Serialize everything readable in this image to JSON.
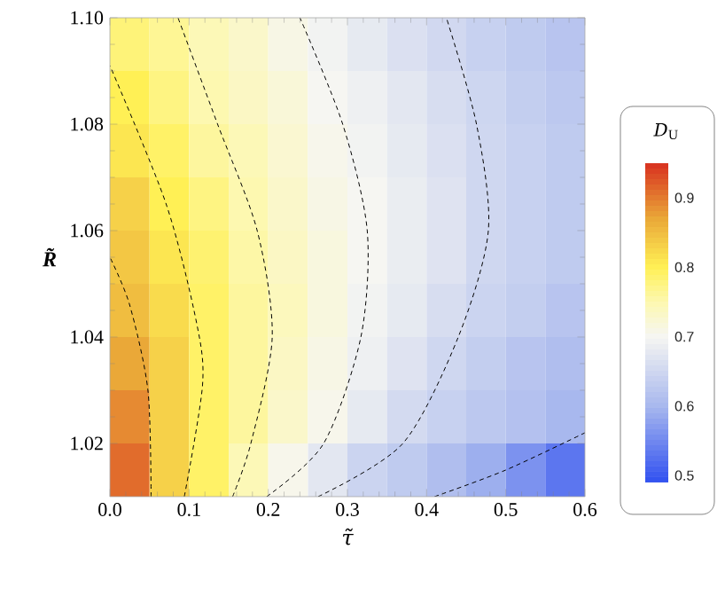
{
  "chart_data": {
    "type": "heatmap",
    "xlabel": "τ̃",
    "ylabel": "R̃",
    "clabel": "*D*$_{U}$",
    "x": [
      0.025,
      0.075,
      0.125,
      0.175,
      0.225,
      0.275,
      0.325,
      0.375,
      0.425,
      0.475,
      0.525,
      0.575
    ],
    "y": [
      1.095,
      1.085,
      1.075,
      1.065,
      1.055,
      1.045,
      1.035,
      1.025,
      1.015
    ],
    "cells": [
      [
        0.78,
        0.765,
        0.745,
        0.73,
        0.71,
        0.695,
        0.68,
        0.665,
        0.652,
        0.64,
        0.63,
        0.62
      ],
      [
        0.8,
        0.775,
        0.75,
        0.735,
        0.72,
        0.7,
        0.69,
        0.675,
        0.66,
        0.648,
        0.635,
        0.625
      ],
      [
        0.81,
        0.79,
        0.76,
        0.745,
        0.725,
        0.705,
        0.695,
        0.68,
        0.665,
        0.65,
        0.64,
        0.63
      ],
      [
        0.83,
        0.8,
        0.775,
        0.75,
        0.73,
        0.71,
        0.7,
        0.685,
        0.67,
        0.65,
        0.64,
        0.63
      ],
      [
        0.84,
        0.81,
        0.785,
        0.755,
        0.735,
        0.715,
        0.7,
        0.685,
        0.67,
        0.65,
        0.64,
        0.63
      ],
      [
        0.85,
        0.82,
        0.79,
        0.76,
        0.74,
        0.715,
        0.695,
        0.68,
        0.66,
        0.645,
        0.635,
        0.62
      ],
      [
        0.87,
        0.83,
        0.79,
        0.76,
        0.735,
        0.71,
        0.69,
        0.67,
        0.65,
        0.635,
        0.62,
        0.61
      ],
      [
        0.89,
        0.83,
        0.79,
        0.76,
        0.73,
        0.705,
        0.68,
        0.655,
        0.64,
        0.625,
        0.615,
        0.6
      ],
      [
        0.91,
        0.83,
        0.79,
        0.745,
        0.705,
        0.675,
        0.645,
        0.63,
        0.61,
        0.59,
        0.56,
        0.53
      ]
    ],
    "clim": [
      0.49,
      0.95
    ],
    "cticks": [
      0.5,
      0.6,
      0.7,
      0.8,
      0.9
    ],
    "xlim": [
      0,
      0.6
    ],
    "ylim": [
      1.01,
      1.1
    ],
    "xticks": [
      {
        "value": 0,
        "label": "0.0"
      },
      {
        "value": 0.1,
        "label": "0.1"
      },
      {
        "value": 0.2,
        "label": "0.2"
      },
      {
        "value": 0.3,
        "label": "0.3"
      },
      {
        "value": 0.4,
        "label": "0.4"
      },
      {
        "value": 0.5,
        "label": "0.5"
      },
      {
        "value": 0.6,
        "label": "0.6"
      }
    ],
    "yticks": [
      1.02,
      1.04,
      1.06,
      1.08,
      {
        "value": 1.1,
        "label": "1.10"
      }
    ],
    "series": [
      {
        "type": "line",
        "color": "#000000",
        "line_style": "dashed",
        "x": [
          0.052,
          0.048,
          0.025,
          0
        ],
        "values": [
          1.01,
          1.03,
          1.046,
          1.055
        ]
      },
      {
        "type": "line",
        "color": "#000000",
        "line_style": "dashed",
        "x": [
          0.094,
          0.117,
          0.109,
          0.071,
          0
        ],
        "values": [
          1.01,
          1.031,
          1.043,
          1.065,
          1.091
        ]
      },
      {
        "type": "line",
        "color": "#000000",
        "line_style": "dashed",
        "x": [
          0.155,
          0.178,
          0.205,
          0.186,
          0.136,
          0.086
        ],
        "values": [
          1.01,
          1.02,
          1.04,
          1.06,
          1.08,
          1.1
        ]
      },
      {
        "type": "line",
        "color": "#000000",
        "line_style": "dashed",
        "x": [
          0.198,
          0.27,
          0.317,
          0.325,
          0.294,
          0.24
        ],
        "values": [
          1.01,
          1.02,
          1.04,
          1.06,
          1.08,
          1.1
        ]
      },
      {
        "type": "line",
        "color": "#000000",
        "line_style": "dashed",
        "x": [
          0.263,
          0.37,
          0.44,
          0.478,
          0.463,
          0.425
        ],
        "values": [
          1.01,
          1.02,
          1.04,
          1.06,
          1.08,
          1.1
        ]
      },
      {
        "type": "line",
        "color": "#000000",
        "line_style": "dashed",
        "x": [
          0.41,
          0.5,
          0.6
        ],
        "values": [
          1.01,
          1.015,
          1.022
        ]
      }
    ]
  }
}
